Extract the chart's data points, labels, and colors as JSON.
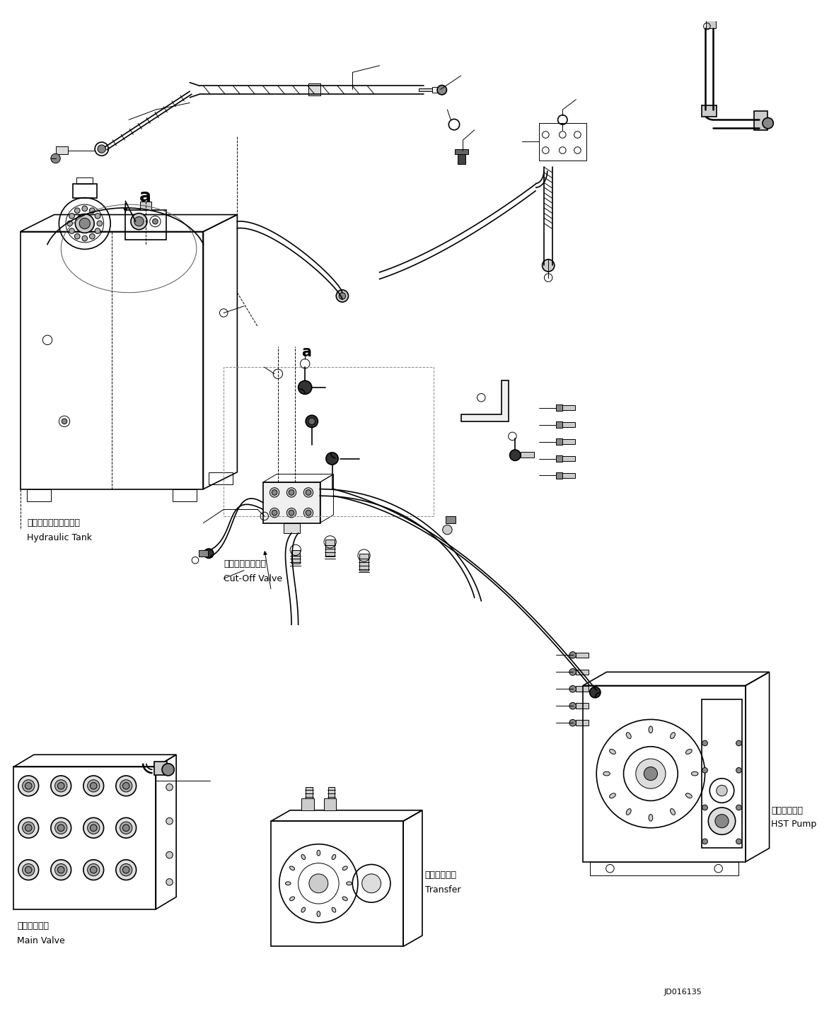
{
  "background_color": "#ffffff",
  "line_color": "#000000",
  "figure_width": 11.55,
  "figure_height": 14.58,
  "dpi": 100,
  "labels": {
    "hydraulic_tank_ja": "ハイドロリックタンク",
    "hydraulic_tank_en": "Hydraulic Tank",
    "cutoff_valve_ja": "カットオフバルブ",
    "cutoff_valve_en": "Cut-Off Valve",
    "main_valve_ja": "メインバルブ",
    "main_valve_en": "Main Valve",
    "hst_pump_ja": "ＨＳＴポンプ",
    "hst_pump_en": "HST Pump",
    "transfer_ja": "トランスファ",
    "transfer_en": "Transfer",
    "label_a": "a",
    "doc_id": "JD016135"
  }
}
